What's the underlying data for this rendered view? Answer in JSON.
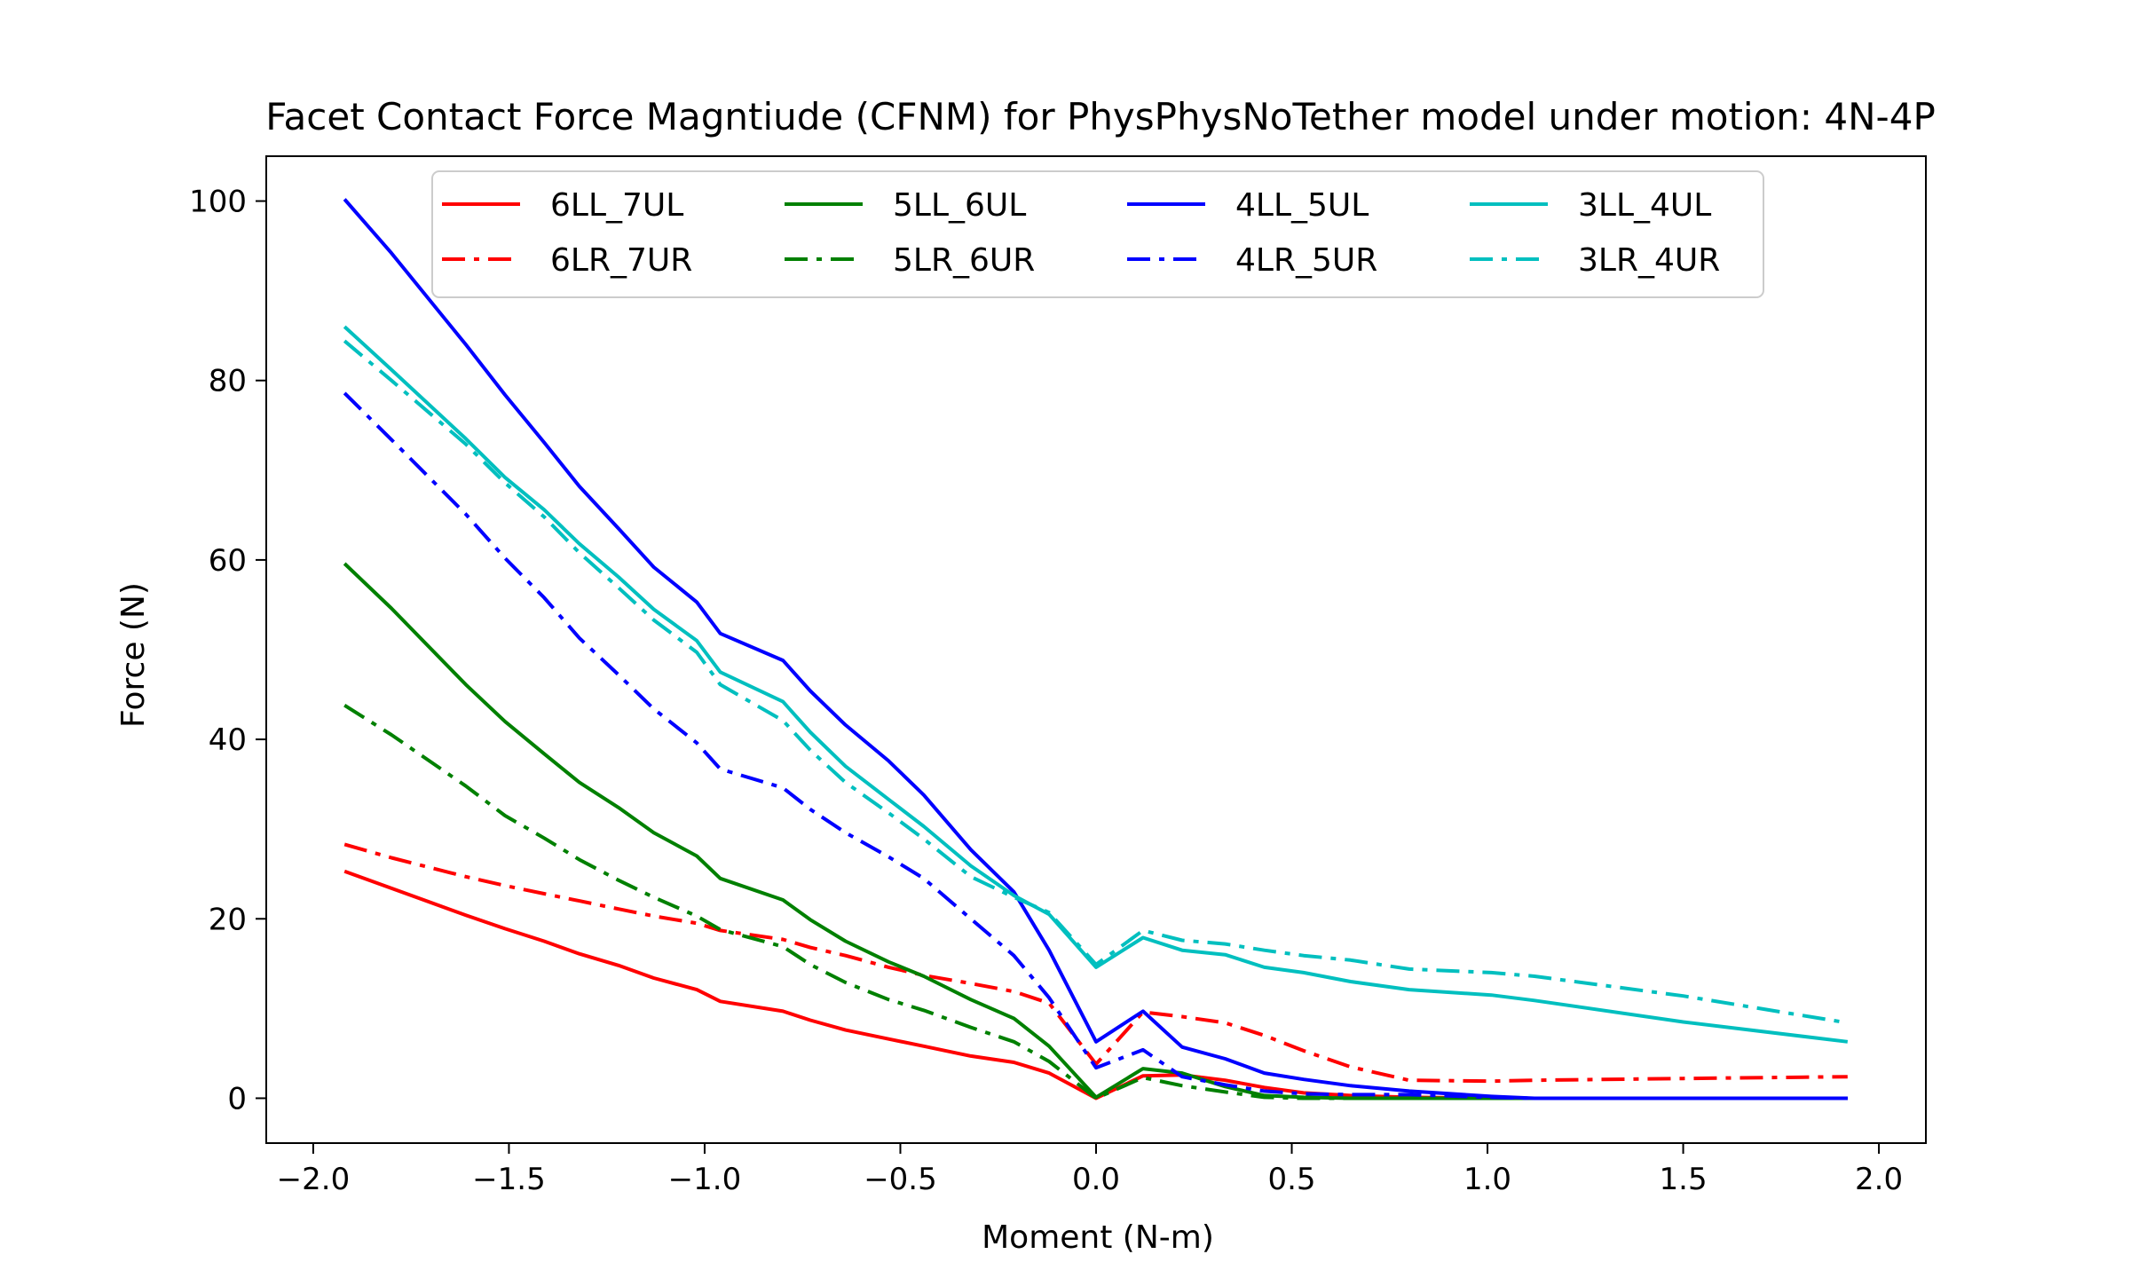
{
  "chart_data": {
    "type": "line",
    "title": "Facet Contact Force Magntiude (CFNM) for PhysPhysNoTether model under motion: 4N-4P",
    "xlabel": "Moment (N-m)",
    "ylabel": "Force (N)",
    "xlim": [
      -2.12,
      2.12
    ],
    "ylim": [
      -5,
      105
    ],
    "xticks": [
      -2.0,
      -1.5,
      -1.0,
      -0.5,
      0.0,
      0.5,
      1.0,
      1.5,
      2.0
    ],
    "xtick_labels": [
      "−2.0",
      "−1.5",
      "−1.0",
      "−0.5",
      "0.0",
      "0.5",
      "1.0",
      "1.5",
      "2.0"
    ],
    "yticks": [
      0,
      20,
      40,
      60,
      80,
      100
    ],
    "ytick_labels": [
      "0",
      "20",
      "40",
      "60",
      "80",
      "100"
    ],
    "grid": false,
    "legend_placement": "upper-center",
    "legend_columns": 4,
    "series": [
      {
        "name": "6LL_7UL",
        "color": "#ff0000",
        "dash": "solid",
        "x": [
          -1.92,
          -1.8,
          -1.61,
          -1.51,
          -1.41,
          -1.32,
          -1.22,
          -1.13,
          -1.02,
          -0.96,
          -0.8,
          -0.73,
          -0.64,
          -0.53,
          -0.44,
          -0.32,
          -0.21,
          -0.12,
          0.0,
          0.12,
          0.22,
          0.33,
          0.43,
          0.53,
          0.65,
          0.8,
          1.01,
          1.12,
          1.5,
          1.92
        ],
        "y": [
          25.3,
          23.4,
          20.4,
          18.9,
          17.5,
          16.1,
          14.8,
          13.4,
          12.1,
          10.8,
          9.7,
          8.7,
          7.6,
          6.6,
          5.8,
          4.7,
          4.0,
          2.8,
          0.0,
          2.5,
          2.6,
          2.0,
          1.2,
          0.6,
          0.3,
          0.1,
          0.0,
          0.0,
          0.0,
          0.0
        ]
      },
      {
        "name": "6LR_7UR",
        "color": "#ff0000",
        "dash": "dashdot",
        "x": [
          -1.92,
          -1.8,
          -1.61,
          -1.51,
          -1.41,
          -1.32,
          -1.22,
          -1.13,
          -1.02,
          -0.96,
          -0.8,
          -0.73,
          -0.64,
          -0.53,
          -0.44,
          -0.32,
          -0.21,
          -0.12,
          0.0,
          0.12,
          0.22,
          0.33,
          0.43,
          0.53,
          0.65,
          0.8,
          1.01,
          1.12,
          1.5,
          1.92
        ],
        "y": [
          28.3,
          26.8,
          24.7,
          23.7,
          22.8,
          22.0,
          21.1,
          20.3,
          19.5,
          18.7,
          17.7,
          16.8,
          15.9,
          14.6,
          13.7,
          12.8,
          11.9,
          10.6,
          3.8,
          9.6,
          9.1,
          8.4,
          7.0,
          5.3,
          3.5,
          2.0,
          1.9,
          2.0,
          2.2,
          2.4
        ]
      },
      {
        "name": "5LL_6UL",
        "color": "#008000",
        "dash": "solid",
        "x": [
          -1.92,
          -1.8,
          -1.61,
          -1.51,
          -1.41,
          -1.32,
          -1.22,
          -1.13,
          -1.02,
          -0.96,
          -0.8,
          -0.73,
          -0.64,
          -0.53,
          -0.44,
          -0.32,
          -0.21,
          -0.12,
          0.0,
          0.12,
          0.22,
          0.33,
          0.43,
          0.53,
          0.65,
          0.8,
          1.01,
          1.12,
          1.5,
          1.92
        ],
        "y": [
          59.6,
          54.6,
          46.1,
          42.0,
          38.4,
          35.2,
          32.4,
          29.6,
          27.0,
          24.5,
          22.1,
          19.9,
          17.5,
          15.2,
          13.6,
          11.0,
          8.9,
          5.8,
          0.1,
          3.3,
          2.8,
          1.3,
          0.3,
          0.1,
          0.0,
          0.0,
          0.0,
          0.0,
          0.0,
          0.0
        ]
      },
      {
        "name": "5LR_6UR",
        "color": "#008000",
        "dash": "dashdot",
        "x": [
          -1.92,
          -1.8,
          -1.61,
          -1.51,
          -1.41,
          -1.32,
          -1.22,
          -1.13,
          -1.02,
          -0.96,
          -0.8,
          -0.73,
          -0.64,
          -0.53,
          -0.44,
          -0.32,
          -0.21,
          -0.12,
          0.0,
          0.12,
          0.22,
          0.33,
          0.43,
          0.53,
          0.65,
          0.8,
          1.01,
          1.12,
          1.5,
          1.92
        ],
        "y": [
          43.8,
          40.5,
          34.8,
          31.5,
          29.0,
          26.6,
          24.3,
          22.4,
          20.3,
          18.8,
          16.9,
          14.9,
          12.9,
          11.0,
          9.8,
          7.9,
          6.3,
          4.1,
          0.0,
          2.3,
          1.4,
          0.7,
          0.1,
          0.0,
          0.0,
          0.0,
          0.0,
          0.0,
          0.0,
          0.0
        ]
      },
      {
        "name": "4LL_5UL",
        "color": "#0000ff",
        "dash": "solid",
        "x": [
          -1.92,
          -1.8,
          -1.61,
          -1.51,
          -1.41,
          -1.32,
          -1.22,
          -1.13,
          -1.02,
          -0.96,
          -0.8,
          -0.73,
          -0.64,
          -0.53,
          -0.44,
          -0.32,
          -0.21,
          -0.12,
          0.0,
          0.12,
          0.22,
          0.33,
          0.43,
          0.53,
          0.65,
          0.8,
          1.01,
          1.12,
          1.5,
          1.92
        ],
        "y": [
          100.2,
          94.2,
          84.0,
          78.4,
          73.1,
          68.2,
          63.5,
          59.2,
          55.3,
          51.8,
          48.8,
          45.4,
          41.6,
          37.6,
          33.8,
          27.7,
          23.0,
          16.5,
          6.3,
          9.7,
          5.7,
          4.4,
          2.8,
          2.1,
          1.4,
          0.8,
          0.2,
          0.0,
          0.0,
          0.0
        ]
      },
      {
        "name": "4LR_5UR",
        "color": "#0000ff",
        "dash": "dashdot",
        "x": [
          -1.92,
          -1.8,
          -1.61,
          -1.51,
          -1.41,
          -1.32,
          -1.22,
          -1.13,
          -1.02,
          -0.96,
          -0.8,
          -0.73,
          -0.64,
          -0.53,
          -0.44,
          -0.32,
          -0.21,
          -0.12,
          0.0,
          0.12,
          0.22,
          0.33,
          0.43,
          0.53,
          0.65,
          0.8,
          1.01,
          1.12,
          1.5,
          1.92
        ],
        "y": [
          78.6,
          73.4,
          65.1,
          60.2,
          55.8,
          51.3,
          47.2,
          43.4,
          39.6,
          36.7,
          34.6,
          32.2,
          29.6,
          26.9,
          24.5,
          20.0,
          15.9,
          11.2,
          3.4,
          5.4,
          2.4,
          1.5,
          0.8,
          0.5,
          0.4,
          0.4,
          0.1,
          0.0,
          0.0,
          0.0
        ]
      },
      {
        "name": "3LL_4UL",
        "color": "#00bfbf",
        "dash": "solid",
        "x": [
          -1.92,
          -1.8,
          -1.61,
          -1.51,
          -1.41,
          -1.32,
          -1.22,
          -1.13,
          -1.02,
          -0.96,
          -0.8,
          -0.73,
          -0.64,
          -0.53,
          -0.44,
          -0.32,
          -0.21,
          -0.12,
          0.0,
          0.12,
          0.22,
          0.33,
          0.43,
          0.53,
          0.65,
          0.8,
          1.01,
          1.12,
          1.5,
          1.92
        ],
        "y": [
          86.0,
          81.2,
          73.5,
          69.2,
          65.6,
          61.8,
          58.1,
          54.5,
          51.0,
          47.5,
          44.2,
          40.8,
          37.0,
          33.3,
          30.3,
          25.9,
          22.6,
          20.5,
          14.6,
          17.9,
          16.5,
          16.0,
          14.6,
          14.0,
          13.0,
          12.1,
          11.5,
          10.9,
          8.5,
          6.3
        ]
      },
      {
        "name": "3LR_4UR",
        "color": "#00bfbf",
        "dash": "dashdot",
        "x": [
          -1.92,
          -1.8,
          -1.61,
          -1.51,
          -1.41,
          -1.32,
          -1.22,
          -1.13,
          -1.02,
          -0.96,
          -0.8,
          -0.73,
          -0.64,
          -0.53,
          -0.44,
          -0.32,
          -0.21,
          -0.12,
          0.0,
          0.12,
          0.22,
          0.33,
          0.43,
          0.53,
          0.65,
          0.8,
          1.01,
          1.12,
          1.5,
          1.92
        ],
        "y": [
          84.4,
          80.0,
          72.9,
          68.6,
          64.8,
          60.8,
          56.9,
          53.3,
          49.7,
          46.1,
          42.1,
          38.8,
          35.2,
          31.8,
          28.9,
          24.7,
          22.4,
          20.7,
          14.9,
          18.7,
          17.6,
          17.2,
          16.5,
          15.9,
          15.4,
          14.4,
          14.0,
          13.6,
          11.4,
          8.4
        ]
      }
    ]
  }
}
